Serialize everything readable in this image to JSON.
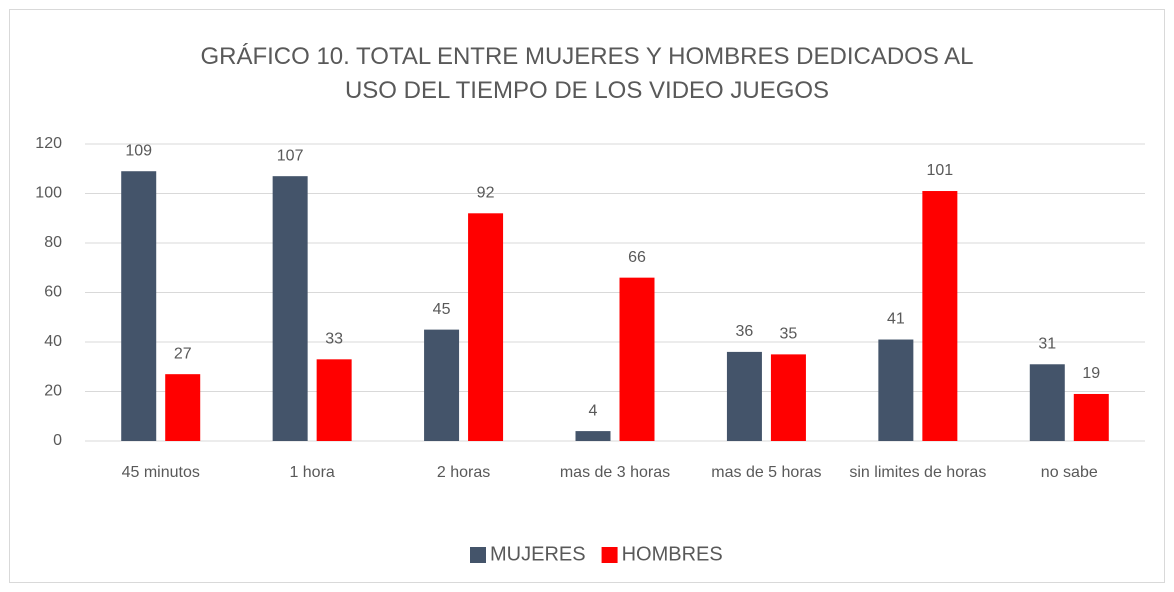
{
  "chart_data": {
    "type": "bar",
    "title": "GRÁFICO 10. TOTAL ENTRE MUJERES Y HOMBRES DEDICADOS AL USO DEL TIEMPO DE LOS VIDEO JUEGOS",
    "categories": [
      "45 minutos",
      "1 hora",
      "2 horas",
      "mas de 3 horas",
      "mas de 5 horas",
      "sin limites de horas",
      "no sabe"
    ],
    "series": [
      {
        "name": "MUJERES",
        "color": "#44546a",
        "values": [
          109,
          107,
          45,
          4,
          36,
          41,
          31
        ]
      },
      {
        "name": "HOMBRES",
        "color": "#ff0000",
        "values": [
          27,
          33,
          92,
          66,
          35,
          101,
          19
        ]
      }
    ],
    "ylim": [
      0,
      120
    ],
    "yticks": [
      0,
      20,
      40,
      60,
      80,
      100,
      120
    ],
    "grid": true,
    "legend": "bottom"
  }
}
